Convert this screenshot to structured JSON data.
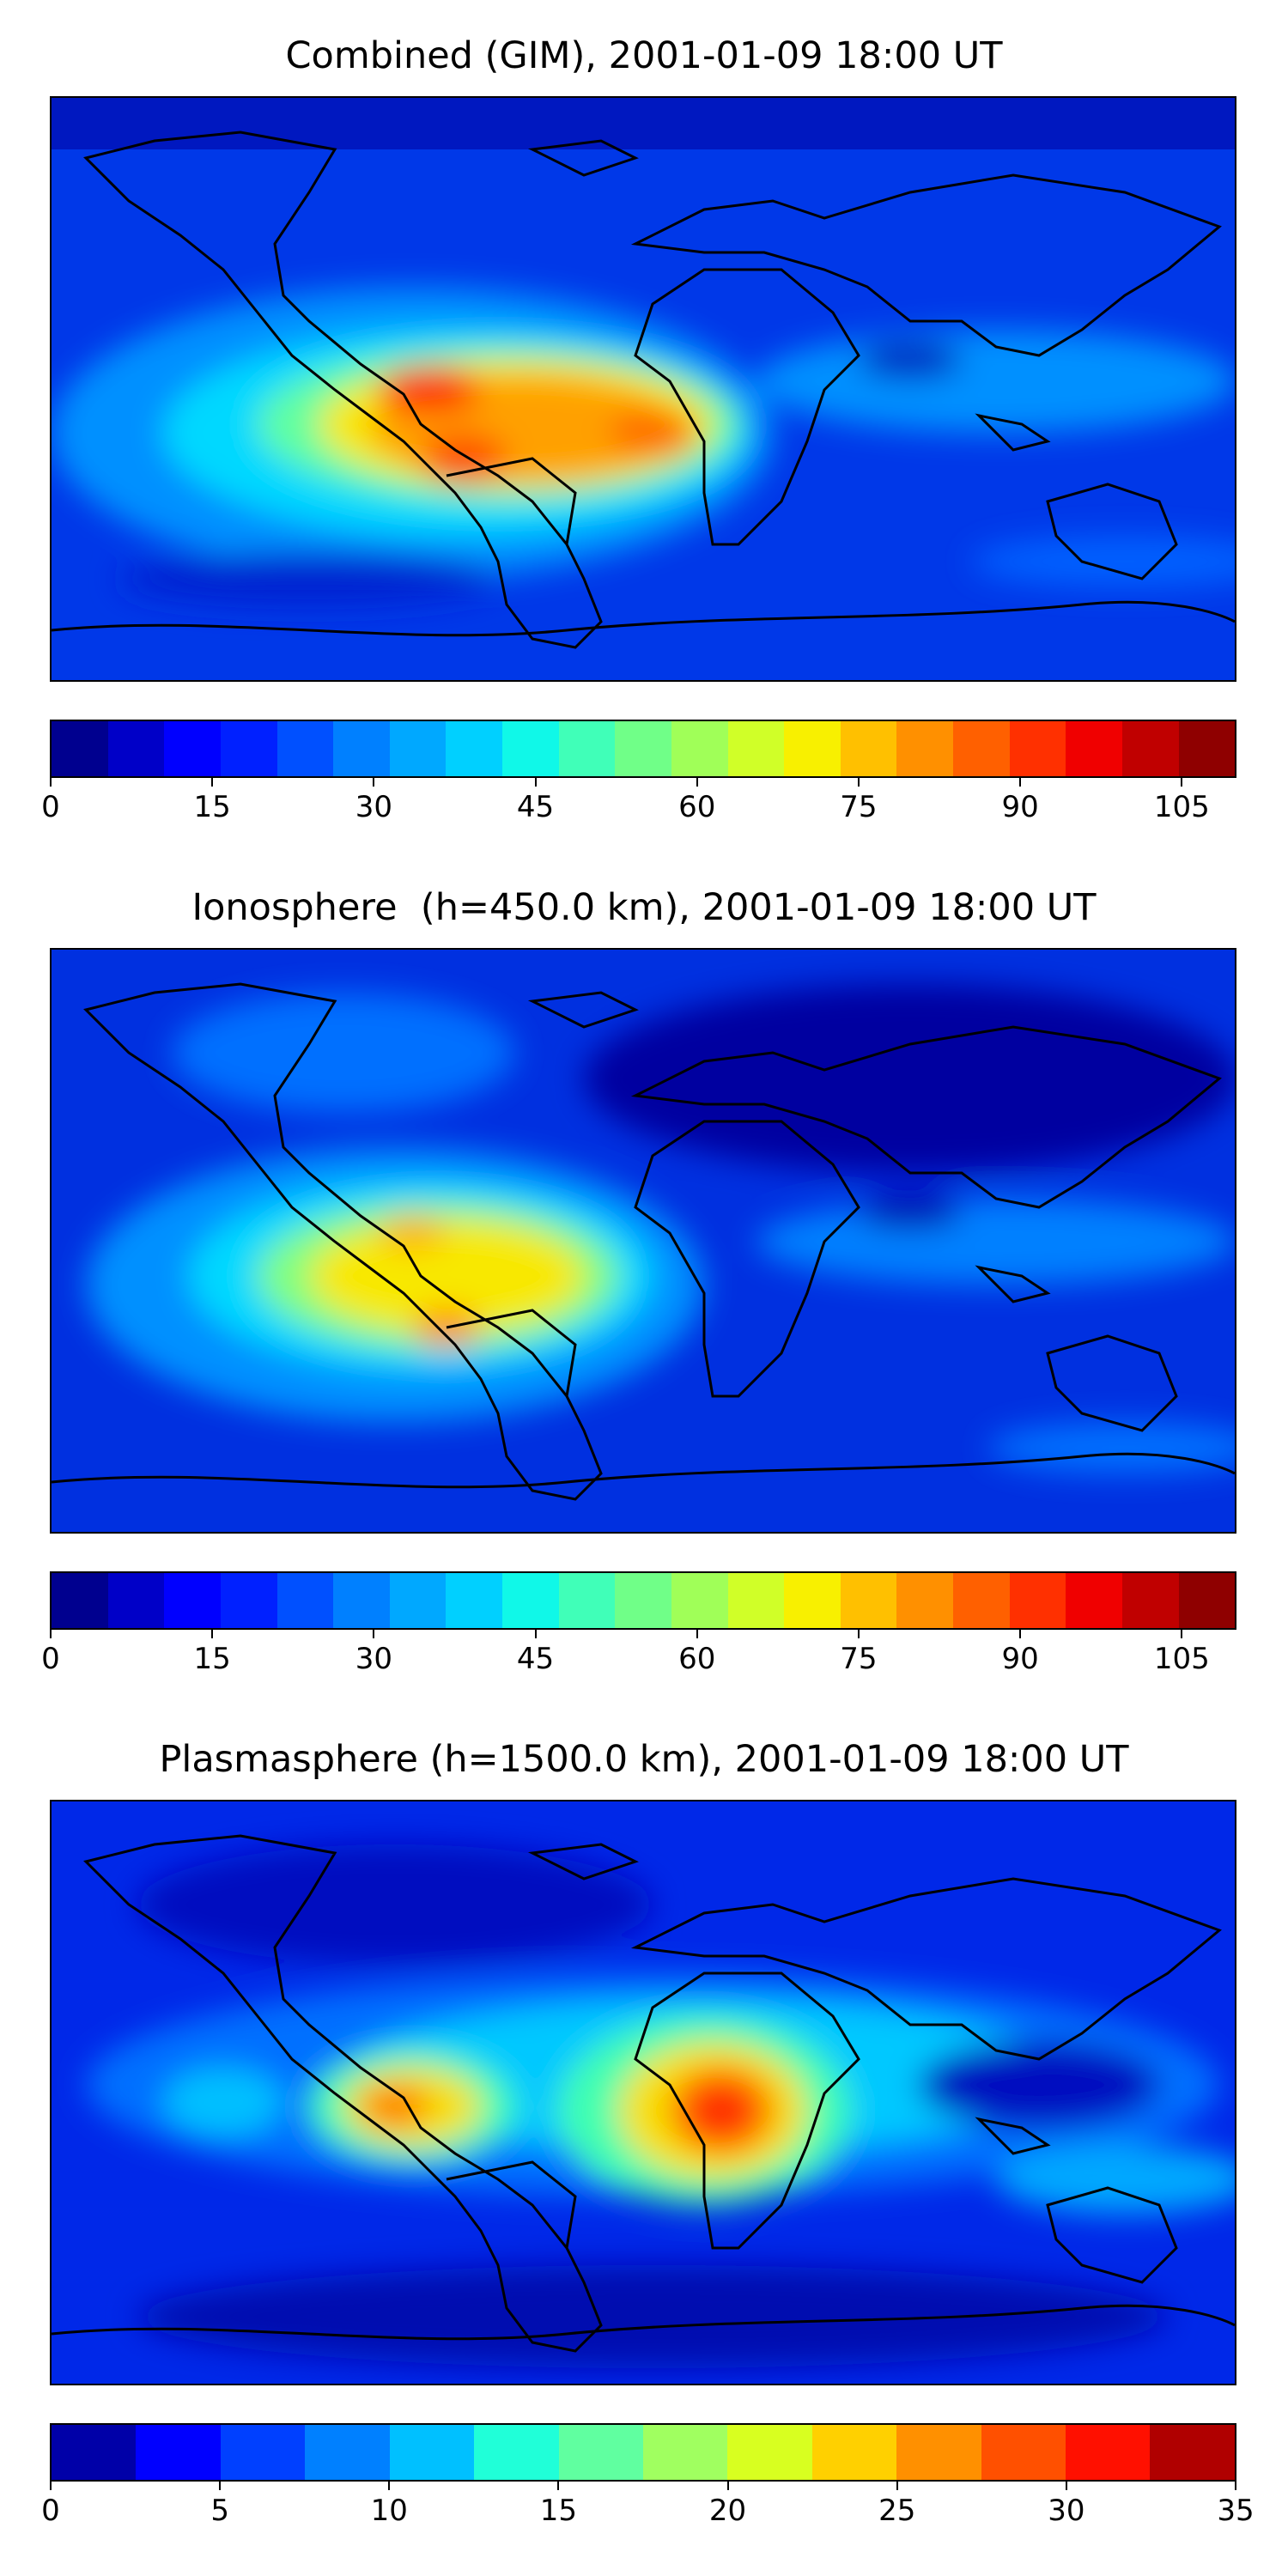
{
  "panels": [
    {
      "title": "Combined (GIM), 2001-01-09 18:00 UT",
      "colorbar": {
        "min": 0,
        "max": 110,
        "ticks": [
          "0",
          "15",
          "30",
          "45",
          "60",
          "75",
          "90",
          "105"
        ],
        "tick_values": [
          0,
          15,
          30,
          45,
          60,
          75,
          90,
          105
        ],
        "colors": [
          "#00008f",
          "#0000c8",
          "#0000ff",
          "#0020ff",
          "#0050ff",
          "#0080ff",
          "#00a8ff",
          "#00d0ff",
          "#10f8e8",
          "#40ffb8",
          "#70ff88",
          "#a0ff58",
          "#d0ff28",
          "#f8f000",
          "#ffc000",
          "#ff9000",
          "#ff6000",
          "#ff3000",
          "#f00000",
          "#c00000",
          "#8f0000"
        ]
      }
    },
    {
      "title": "Ionosphere  (h=450.0 km), 2001-01-09 18:00 UT",
      "colorbar": {
        "min": 0,
        "max": 110,
        "ticks": [
          "0",
          "15",
          "30",
          "45",
          "60",
          "75",
          "90",
          "105"
        ],
        "tick_values": [
          0,
          15,
          30,
          45,
          60,
          75,
          90,
          105
        ],
        "colors": [
          "#00008f",
          "#0000c8",
          "#0000ff",
          "#0020ff",
          "#0050ff",
          "#0080ff",
          "#00a8ff",
          "#00d0ff",
          "#10f8e8",
          "#40ffb8",
          "#70ff88",
          "#a0ff58",
          "#d0ff28",
          "#f8f000",
          "#ffc000",
          "#ff9000",
          "#ff6000",
          "#ff3000",
          "#f00000",
          "#c00000",
          "#8f0000"
        ]
      }
    },
    {
      "title": "Plasmasphere (h=1500.0 km), 2001-01-09 18:00 UT",
      "colorbar": {
        "min": 0,
        "max": 35,
        "ticks": [
          "0",
          "5",
          "10",
          "15",
          "20",
          "25",
          "30",
          "35"
        ],
        "tick_values": [
          0,
          5,
          10,
          15,
          20,
          25,
          30,
          35
        ],
        "colors": [
          "#0000a8",
          "#0000ff",
          "#0040ff",
          "#0080ff",
          "#00c0ff",
          "#20ffd8",
          "#60ffa0",
          "#a0ff60",
          "#d8ff20",
          "#ffd000",
          "#ff9000",
          "#ff5000",
          "#ff1000",
          "#b00000"
        ]
      }
    }
  ]
}
